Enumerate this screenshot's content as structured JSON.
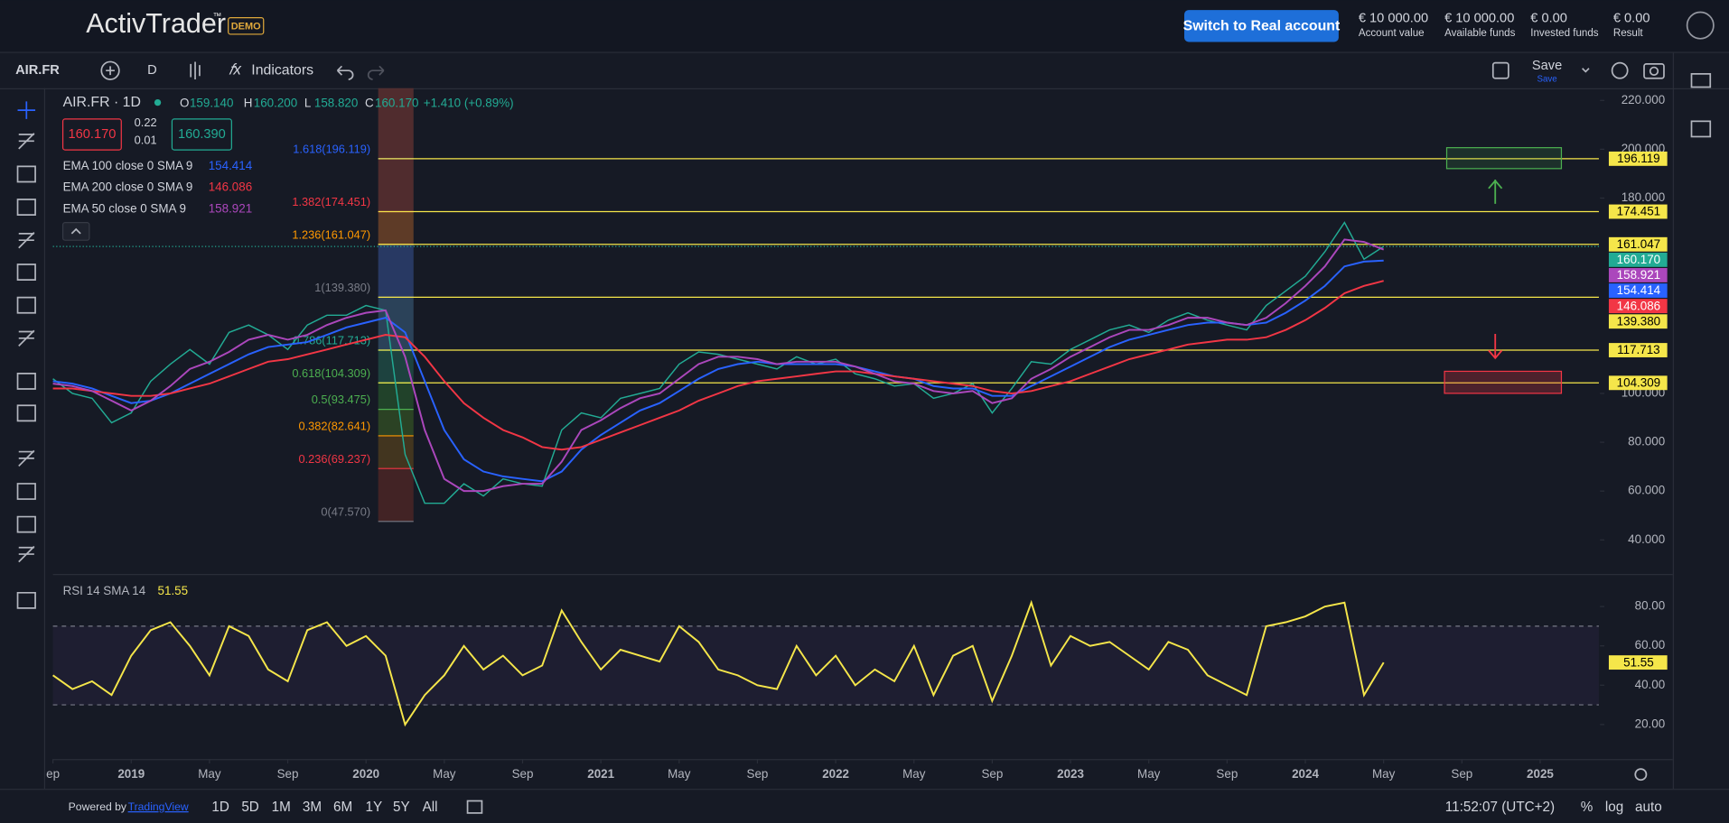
{
  "header": {
    "logo": "ActivTrader",
    "trademark": "™",
    "badge": "DEMO",
    "button": "Switch to Real account",
    "stats": [
      {
        "value": "€ 10 000.00",
        "label": "Account value"
      },
      {
        "value": "€ 10 000.00",
        "label": "Available funds"
      },
      {
        "value": "€ 0.00",
        "label": "Invested funds"
      },
      {
        "value": "€ 0.00",
        "label": "Result"
      }
    ]
  },
  "toolbar": {
    "symbol": "AIR.FR",
    "interval": "D",
    "indicators": "Indicators",
    "save": "Save",
    "save_status": "Save"
  },
  "legend": {
    "ohlc": [
      {
        "key": "O",
        "value": "159.140"
      },
      {
        "key": "H",
        "value": "160.200"
      },
      {
        "key": "L",
        "value": "158.820"
      },
      {
        "key": "C",
        "value": "160.170"
      }
    ],
    "change": "+1.410 (+0.89%)",
    "bid": "160.170",
    "spread_top": "0.22",
    "spread_bottom": "0.01",
    "ask": "160.390"
  },
  "footer": {
    "powered": "Powered by",
    "link": "TradingView",
    "ranges": [
      "1D",
      "5D",
      "1M",
      "3M",
      "6M",
      "1Y",
      "5Y",
      "All"
    ],
    "time": "11:52:07 (UTC+2)",
    "options": [
      "%",
      "log",
      "auto"
    ]
  },
  "chart_data": [
    {
      "type": "line",
      "x": [
        "2018-09",
        "2018-10",
        "2018-11",
        "2018-12",
        "2019-01",
        "2019-02",
        "2019-03",
        "2019-04",
        "2019-05",
        "2019-06",
        "2019-07",
        "2019-08",
        "2019-09",
        "2019-10",
        "2019-11",
        "2019-12",
        "2020-01",
        "2020-02",
        "2020-03",
        "2020-04",
        "2020-05",
        "2020-06",
        "2020-07",
        "2020-08",
        "2020-09",
        "2020-10",
        "2020-11",
        "2020-12",
        "2021-01",
        "2021-02",
        "2021-03",
        "2021-04",
        "2021-05",
        "2021-06",
        "2021-07",
        "2021-08",
        "2021-09",
        "2021-10",
        "2021-11",
        "2021-12",
        "2022-01",
        "2022-02",
        "2022-03",
        "2022-04",
        "2022-05",
        "2022-06",
        "2022-07",
        "2022-08",
        "2022-09",
        "2022-10",
        "2022-11",
        "2022-12",
        "2023-01",
        "2023-02",
        "2023-03",
        "2023-04",
        "2023-05",
        "2023-06",
        "2023-07",
        "2023-08",
        "2023-09",
        "2023-10",
        "2023-11",
        "2023-12",
        "2024-01",
        "2024-02",
        "2024-03",
        "2024-04",
        "2024-05"
      ],
      "series": [
        {
          "name": "AIR.FR · 1D",
          "color": "#22ab94",
          "last_label": "160.170",
          "values": [
            106,
            100,
            98,
            88,
            92,
            105,
            112,
            118,
            112,
            125,
            128,
            124,
            118,
            128,
            132,
            132,
            136,
            134,
            75,
            55,
            55,
            63,
            58,
            65,
            63,
            62,
            85,
            92,
            90,
            98,
            100,
            102,
            112,
            117,
            116,
            114,
            112,
            110,
            115,
            112,
            114,
            108,
            106,
            103,
            104,
            98,
            100,
            104,
            92,
            102,
            113,
            112,
            118,
            122,
            126,
            128,
            125,
            130,
            133,
            130,
            128,
            126,
            136,
            142,
            148,
            158,
            170,
            155,
            160.17
          ]
        },
        {
          "name": "EMA 100 close 0 SMA 9",
          "color": "#2962ff",
          "last_label": "154.414",
          "values": [
            105,
            104,
            102,
            99,
            96,
            97,
            100,
            104,
            108,
            112,
            116,
            119,
            120,
            121,
            124,
            127,
            129,
            131,
            125,
            105,
            85,
            73,
            68,
            66,
            65,
            64,
            68,
            77,
            83,
            88,
            93,
            96,
            101,
            106,
            110,
            112,
            113,
            112,
            112,
            112,
            112,
            111,
            109,
            107,
            106,
            103,
            102,
            102,
            99,
            99,
            103,
            107,
            111,
            115,
            119,
            122,
            124,
            126,
            128,
            129,
            129,
            128,
            129,
            133,
            138,
            144,
            152,
            154,
            154.414
          ]
        },
        {
          "name": "EMA 200 close 0 SMA 9",
          "color": "#f23645",
          "last_label": "146.086",
          "values": [
            102,
            102,
            101,
            100,
            99,
            99,
            100,
            102,
            104,
            107,
            110,
            113,
            114,
            116,
            118,
            120,
            122,
            124,
            123,
            115,
            105,
            96,
            90,
            85,
            82,
            78,
            77,
            78,
            81,
            84,
            87,
            90,
            93,
            97,
            100,
            103,
            105,
            106,
            107,
            108,
            109,
            109,
            108,
            107,
            106,
            105,
            104,
            103,
            101,
            100,
            101,
            103,
            105,
            108,
            111,
            114,
            116,
            118,
            120,
            121,
            122,
            122,
            123,
            126,
            130,
            135,
            141,
            144,
            146.086
          ]
        },
        {
          "name": "EMA 50 close 0 SMA 9",
          "color": "#ab47bc",
          "last_label": "158.921",
          "values": [
            104,
            103,
            101,
            97,
            93,
            97,
            103,
            110,
            113,
            117,
            122,
            124,
            122,
            124,
            128,
            131,
            133,
            134,
            115,
            85,
            65,
            60,
            60,
            62,
            63,
            63,
            72,
            85,
            89,
            94,
            98,
            100,
            106,
            112,
            115,
            115,
            114,
            112,
            113,
            113,
            113,
            111,
            108,
            105,
            104,
            101,
            100,
            101,
            96,
            98,
            106,
            110,
            115,
            119,
            123,
            126,
            126,
            128,
            131,
            131,
            129,
            128,
            131,
            137,
            144,
            152,
            163,
            162,
            158.921
          ]
        }
      ],
      "xlim": [
        "2018-09",
        "2025-04"
      ],
      "xticks": [
        {
          "value": "2018-09",
          "label": "ep"
        },
        {
          "value": "2019-01",
          "label": "2019"
        },
        {
          "value": "2019-05",
          "label": "May"
        },
        {
          "value": "2019-09",
          "label": "Sep"
        },
        {
          "value": "2020-01",
          "label": "2020"
        },
        {
          "value": "2020-05",
          "label": "May"
        },
        {
          "value": "2020-09",
          "label": "Sep"
        },
        {
          "value": "2021-01",
          "label": "2021"
        },
        {
          "value": "2021-05",
          "label": "May"
        },
        {
          "value": "2021-09",
          "label": "Sep"
        },
        {
          "value": "2022-01",
          "label": "2022"
        },
        {
          "value": "2022-05",
          "label": "May"
        },
        {
          "value": "2022-09",
          "label": "Sep"
        },
        {
          "value": "2023-01",
          "label": "2023"
        },
        {
          "value": "2023-05",
          "label": "May"
        },
        {
          "value": "2023-09",
          "label": "Sep"
        },
        {
          "value": "2024-01",
          "label": "2024"
        },
        {
          "value": "2024-05",
          "label": "May"
        },
        {
          "value": "2024-09",
          "label": "Sep"
        },
        {
          "value": "2025-01",
          "label": "2025"
        }
      ],
      "ylim": [
        26.5,
        225
      ],
      "yticks": [
        {
          "value": 40,
          "label": "40.000"
        },
        {
          "value": 60,
          "label": "60.000"
        },
        {
          "value": 80,
          "label": "80.000"
        },
        {
          "value": 100,
          "label": "100.000"
        },
        {
          "value": 180,
          "label": "180.000"
        },
        {
          "value": 200,
          "label": "200.000"
        },
        {
          "value": 220,
          "label": "220.000"
        }
      ],
      "fib_levels": [
        {
          "value": 196.119,
          "label": "1.618(196.119)",
          "color": "#2962ff"
        },
        {
          "value": 174.451,
          "label": "1.382(174.451)",
          "color": "#f23645"
        },
        {
          "value": 161.047,
          "label": "1.236(161.047)",
          "color": "#ff9800"
        },
        {
          "value": 139.38,
          "label": "1(139.380)",
          "color": "#787b86"
        },
        {
          "value": 117.713,
          "label": "0.786(117.713)",
          "color": "#22ab94"
        },
        {
          "value": 104.309,
          "label": "0.618(104.309)",
          "color": "#4caf50"
        },
        {
          "value": 93.475,
          "label": "0.5(93.475)",
          "color": "#4caf50"
        },
        {
          "value": 82.641,
          "label": "0.382(82.641)",
          "color": "#ff9800"
        },
        {
          "value": 69.237,
          "label": "0.236(69.237)",
          "color": "#f23645"
        },
        {
          "value": 47.57,
          "label": "0(47.570)",
          "color": "#787b86"
        }
      ],
      "hline_color": "#f5e64a",
      "hlines": [
        {
          "value": 196.119,
          "label": "196.119"
        },
        {
          "value": 174.451,
          "label": "174.451"
        },
        {
          "value": 161.047,
          "label": "161.047"
        },
        {
          "value": 139.38,
          "label": "139.380"
        },
        {
          "value": 117.713,
          "label": "117.713"
        },
        {
          "value": 104.309,
          "label": "104.309"
        }
      ]
    },
    {
      "type": "line",
      "series": [
        {
          "name": "RSI 14 SMA 14",
          "color": "#f5e64a",
          "last_label": "51.55",
          "values": [
            45,
            38,
            42,
            35,
            55,
            68,
            72,
            60,
            45,
            70,
            65,
            48,
            42,
            68,
            72,
            60,
            65,
            55,
            20,
            35,
            45,
            60,
            48,
            55,
            45,
            50,
            78,
            62,
            48,
            58,
            55,
            52,
            70,
            62,
            48,
            45,
            40,
            38,
            60,
            45,
            55,
            40,
            48,
            42,
            60,
            35,
            55,
            60,
            32,
            55,
            82,
            50,
            65,
            60,
            62,
            55,
            48,
            62,
            58,
            45,
            40,
            35,
            70,
            72,
            75,
            80,
            82,
            35,
            51.55
          ]
        }
      ],
      "ylim": [
        3,
        96
      ],
      "yticks": [
        {
          "value": 20,
          "label": "20.00"
        },
        {
          "value": 40,
          "label": "40.00"
        },
        {
          "value": 60,
          "label": "60.00"
        },
        {
          "value": 80,
          "label": "80.00"
        }
      ],
      "bands": [
        30,
        70
      ]
    }
  ]
}
